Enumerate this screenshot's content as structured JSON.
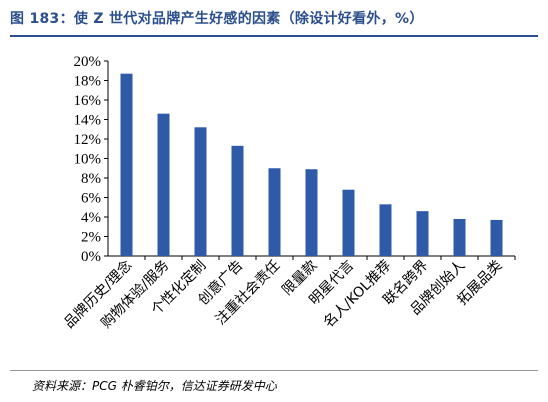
{
  "title": "图 183：使 Z 世代对品牌产生好感的因素（除设计好看外，%）",
  "source": "资料来源：PCG 朴睿铂尔，信达证券研发中心",
  "colors": {
    "bar": "#2f5aa8",
    "title": "#2b4f8c",
    "axis": "#000000"
  },
  "chart_data": {
    "type": "bar",
    "categories": [
      "品牌历史/理念",
      "购物体验/服务",
      "个性化定制",
      "创意广告",
      "注重社会责任",
      "限量款",
      "明星代言",
      "名人/KOL推荐",
      "联名跨界",
      "品牌创始人",
      "拓展品类"
    ],
    "values": [
      18.7,
      14.6,
      13.2,
      11.3,
      9.0,
      8.9,
      6.8,
      5.3,
      4.6,
      3.8,
      3.7
    ],
    "ylim": [
      0,
      20
    ],
    "yticks": [
      "0%",
      "2%",
      "4%",
      "6%",
      "8%",
      "10%",
      "12%",
      "14%",
      "16%",
      "18%",
      "20%"
    ],
    "grid": false,
    "legend": "none"
  }
}
